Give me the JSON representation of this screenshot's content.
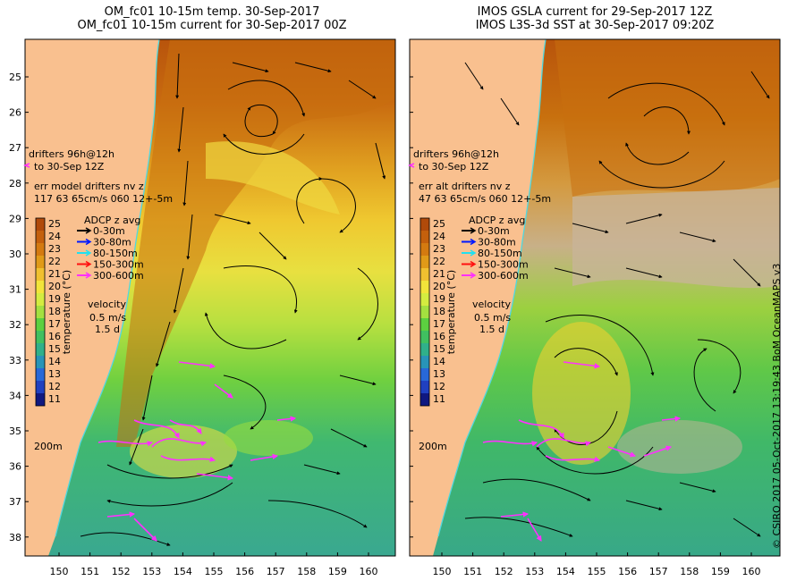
{
  "panels": [
    {
      "id": "left",
      "title_line1": "OM_fc01 10-15m temp. 30-Sep-2017",
      "title_line2": "OM_fc01 10-15m current for 30-Sep-2017 00Z",
      "drifter_line1": "drifters 96h@12h",
      "drifter_line2": "to 30-Sep 12Z",
      "err_line1": "err model drifters nv z",
      "err_line2": "117 63 65cm/s 060 12+-5m"
    },
    {
      "id": "right",
      "title_line1": "IMOS GSLA current for 29-Sep-2017 12Z",
      "title_line2": "IMOS L3S-3d SST at 30-Sep-2017 09:20Z",
      "drifter_line1": "drifters 96h@12h",
      "drifter_line2": "to 30-Sep 12Z",
      "err_line1": "err alt drifters nv z",
      "err_line2": "47 63 65cm/s 060 12+-5m"
    }
  ],
  "colorbar": {
    "ticks": [
      "25",
      "24",
      "23",
      "22",
      "21",
      "20",
      "19",
      "18",
      "17",
      "16",
      "15",
      "14",
      "13",
      "12",
      "11"
    ],
    "label": "temperature (°C)",
    "colors": [
      "#b04a0a",
      "#c4600c",
      "#d47a10",
      "#e09a18",
      "#f0c030",
      "#f2e43a",
      "#d4ec40",
      "#a4e040",
      "#5cd040",
      "#40c060",
      "#30b08a",
      "#2894b8",
      "#2868d8",
      "#2040c0",
      "#101880"
    ]
  },
  "legend": {
    "title": "ADCP z avg",
    "items": [
      {
        "label": "0-30m",
        "color": "#000000"
      },
      {
        "label": "30-80m",
        "color": "#0018ff"
      },
      {
        "label": "80-150m",
        "color": "#20e0f0"
      },
      {
        "label": "150-300m",
        "color": "#ff1010"
      },
      {
        "label": "300-600m",
        "color": "#ff30ff"
      }
    ]
  },
  "velocity": {
    "title": "velocity",
    "speed": "0.5 m/s",
    "days": "1.5 d"
  },
  "isobath_label": "200m",
  "lat_ticks": [
    "25",
    "26",
    "27",
    "28",
    "29",
    "30",
    "31",
    "32",
    "33",
    "34",
    "35",
    "36",
    "37",
    "38"
  ],
  "lon_ticks": [
    "150",
    "151",
    "152",
    "153",
    "154",
    "155",
    "156",
    "157",
    "158",
    "159",
    "160"
  ],
  "credit": "© CSIRO 2017   05-Oct-2017 13:19:43 BoM OceanMAPS v3"
}
